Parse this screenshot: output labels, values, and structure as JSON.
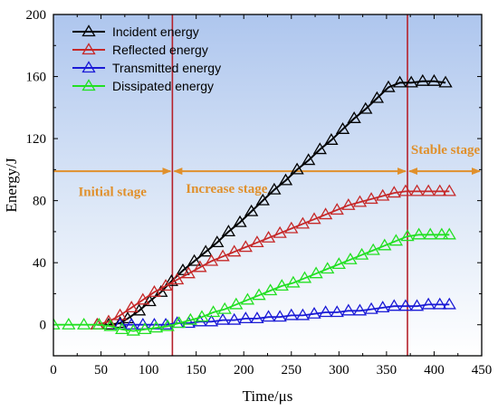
{
  "chart_data": {
    "type": "line",
    "xlabel": "Time/μs",
    "ylabel": "Energy/J",
    "xlim": [
      0,
      450
    ],
    "ylim": [
      -20,
      200
    ],
    "xticks": [
      "0",
      "50",
      "100",
      "150",
      "200",
      "250",
      "300",
      "350",
      "400",
      "450"
    ],
    "yticks": [
      "0",
      "40",
      "80",
      "120",
      "160",
      "200"
    ],
    "legend_position": "top-left",
    "background": "blue-white vertical gradient",
    "series": [
      {
        "name": "Incident energy",
        "color": "#000000",
        "marker": "triangle",
        "points": [
          [
            46,
            0
          ],
          [
            58,
            0
          ],
          [
            70,
            1
          ],
          [
            78,
            4
          ],
          [
            90,
            9
          ],
          [
            101,
            15
          ],
          [
            113,
            21
          ],
          [
            124,
            28
          ],
          [
            136,
            35
          ],
          [
            148,
            41
          ],
          [
            160,
            47
          ],
          [
            172,
            53
          ],
          [
            184,
            60
          ],
          [
            196,
            66
          ],
          [
            208,
            73
          ],
          [
            220,
            80
          ],
          [
            232,
            87
          ],
          [
            244,
            93
          ],
          [
            256,
            100
          ],
          [
            268,
            106
          ],
          [
            280,
            113
          ],
          [
            292,
            119
          ],
          [
            304,
            126
          ],
          [
            316,
            133
          ],
          [
            328,
            139
          ],
          [
            340,
            146
          ],
          [
            352,
            153
          ],
          [
            364,
            156
          ],
          [
            376,
            156
          ],
          [
            388,
            157
          ],
          [
            400,
            157
          ],
          [
            412,
            156
          ]
        ]
      },
      {
        "name": "Reflected energy",
        "color": "#c62828",
        "marker": "triangle",
        "points": [
          [
            46,
            0
          ],
          [
            58,
            2
          ],
          [
            70,
            6
          ],
          [
            82,
            11
          ],
          [
            94,
            16
          ],
          [
            106,
            21
          ],
          [
            118,
            25
          ],
          [
            130,
            29
          ],
          [
            142,
            33
          ],
          [
            154,
            37
          ],
          [
            166,
            41
          ],
          [
            178,
            44
          ],
          [
            190,
            47
          ],
          [
            202,
            50
          ],
          [
            214,
            53
          ],
          [
            226,
            56
          ],
          [
            238,
            59
          ],
          [
            250,
            62
          ],
          [
            262,
            65
          ],
          [
            274,
            68
          ],
          [
            286,
            71
          ],
          [
            298,
            74
          ],
          [
            310,
            77
          ],
          [
            322,
            79
          ],
          [
            334,
            81
          ],
          [
            346,
            83
          ],
          [
            358,
            85
          ],
          [
            370,
            86
          ],
          [
            382,
            86
          ],
          [
            394,
            86
          ],
          [
            406,
            86
          ],
          [
            416,
            86
          ]
        ]
      },
      {
        "name": "Transmitted energy",
        "color": "#1a1ad6",
        "marker": "triangle",
        "points": [
          [
            70,
            0
          ],
          [
            82,
            0
          ],
          [
            94,
            0
          ],
          [
            106,
            0
          ],
          [
            118,
            0
          ],
          [
            130,
            1
          ],
          [
            142,
            1
          ],
          [
            154,
            2
          ],
          [
            166,
            2
          ],
          [
            178,
            3
          ],
          [
            190,
            3
          ],
          [
            202,
            4
          ],
          [
            214,
            4
          ],
          [
            226,
            5
          ],
          [
            238,
            5
          ],
          [
            250,
            6
          ],
          [
            262,
            6
          ],
          [
            274,
            7
          ],
          [
            286,
            8
          ],
          [
            298,
            8
          ],
          [
            310,
            9
          ],
          [
            322,
            9
          ],
          [
            334,
            10
          ],
          [
            346,
            11
          ],
          [
            358,
            12
          ],
          [
            370,
            12
          ],
          [
            382,
            12
          ],
          [
            394,
            13
          ],
          [
            406,
            13
          ],
          [
            416,
            13
          ]
        ]
      },
      {
        "name": "Dissipated energy",
        "color": "#22e022",
        "marker": "triangle",
        "points": [
          [
            0,
            0
          ],
          [
            16,
            0
          ],
          [
            32,
            0
          ],
          [
            48,
            0
          ],
          [
            60,
            -1
          ],
          [
            72,
            -3
          ],
          [
            84,
            -4
          ],
          [
            96,
            -3
          ],
          [
            108,
            -2
          ],
          [
            120,
            -1
          ],
          [
            132,
            1
          ],
          [
            144,
            3
          ],
          [
            156,
            5
          ],
          [
            168,
            8
          ],
          [
            180,
            10
          ],
          [
            192,
            13
          ],
          [
            204,
            16
          ],
          [
            216,
            19
          ],
          [
            228,
            22
          ],
          [
            240,
            25
          ],
          [
            252,
            27
          ],
          [
            264,
            30
          ],
          [
            276,
            33
          ],
          [
            288,
            36
          ],
          [
            300,
            39
          ],
          [
            312,
            42
          ],
          [
            324,
            45
          ],
          [
            336,
            48
          ],
          [
            348,
            51
          ],
          [
            360,
            54
          ],
          [
            372,
            57
          ],
          [
            384,
            58
          ],
          [
            396,
            58
          ],
          [
            408,
            58
          ],
          [
            416,
            58
          ]
        ]
      }
    ],
    "stages": {
      "dividers": [
        125,
        372
      ],
      "arrow_y": 99,
      "arrow_color": "#e0902c",
      "labels": [
        {
          "text": "Initial stage",
          "x": 62,
          "y": 83
        },
        {
          "text": "Increase stage",
          "x": 182,
          "y": 85
        },
        {
          "text": "Stable stage",
          "x": 412,
          "y": 110
        }
      ]
    }
  }
}
